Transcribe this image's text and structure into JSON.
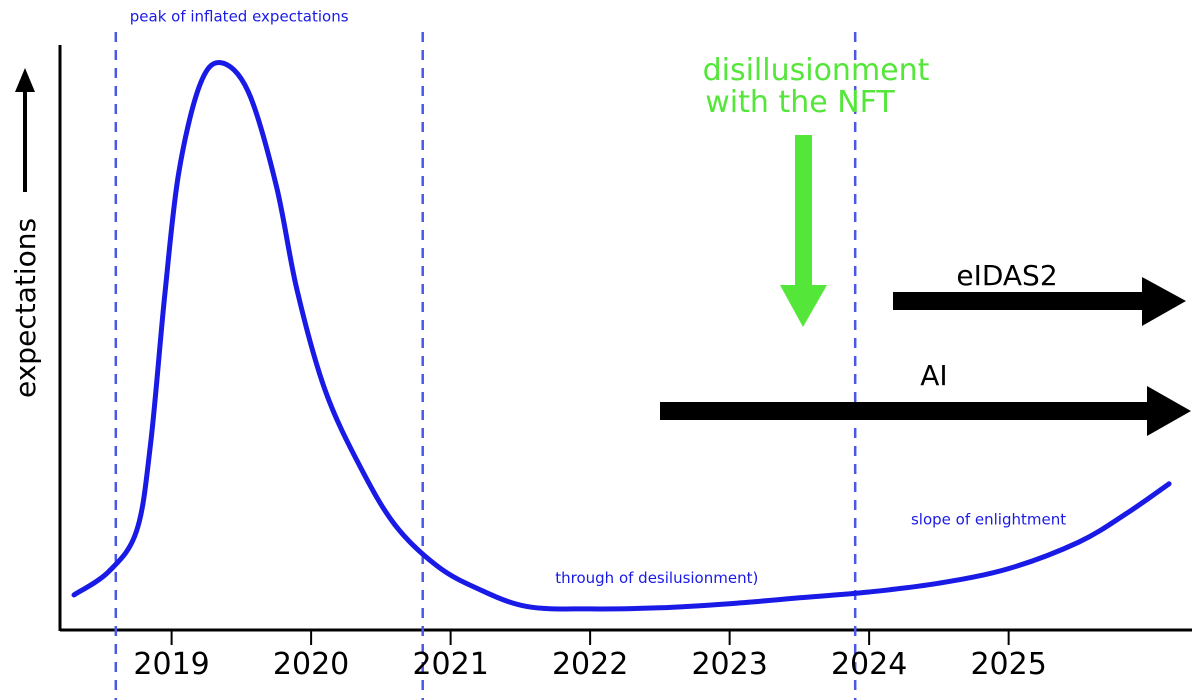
{
  "chart_data": {
    "type": "line",
    "xlabel": "",
    "ylabel": "expectations",
    "x_ticks": [
      "2019",
      "2020",
      "2021",
      "2022",
      "2023",
      "2024",
      "2025"
    ],
    "xlim": [
      2018.2,
      2026.3
    ],
    "ylim": [
      0,
      100
    ],
    "grid": false,
    "series": [
      {
        "color": "#1a1ae6",
        "points": [
          [
            2018.3,
            6
          ],
          [
            2018.55,
            10
          ],
          [
            2018.75,
            17
          ],
          [
            2018.85,
            32
          ],
          [
            2018.95,
            57
          ],
          [
            2019.05,
            78
          ],
          [
            2019.2,
            93
          ],
          [
            2019.35,
            97
          ],
          [
            2019.55,
            92
          ],
          [
            2019.75,
            76
          ],
          [
            2019.9,
            58
          ],
          [
            2020.1,
            41
          ],
          [
            2020.35,
            28
          ],
          [
            2020.6,
            18
          ],
          [
            2020.9,
            11
          ],
          [
            2021.2,
            7
          ],
          [
            2021.55,
            4
          ],
          [
            2022.0,
            3.6
          ],
          [
            2022.5,
            3.8
          ],
          [
            2023.0,
            4.5
          ],
          [
            2023.5,
            5.5
          ],
          [
            2024.0,
            6.5
          ],
          [
            2024.5,
            8
          ],
          [
            2025.0,
            10.5
          ],
          [
            2025.5,
            15
          ],
          [
            2025.85,
            20
          ],
          [
            2026.15,
            25
          ]
        ]
      }
    ],
    "vertical_lines": [
      {
        "x": 2018.6,
        "color": "#4a58e8"
      },
      {
        "x": 2020.8,
        "color": "#4a58e8"
      },
      {
        "x": 2023.9,
        "color": "#4a58e8"
      }
    ],
    "annotations": [
      {
        "text": "peak of inflated expectations",
        "x": 2018.7,
        "y": 104,
        "color": "#1a1ae6"
      },
      {
        "text": "through of desilusionment)",
        "x": 2021.75,
        "y": 8,
        "color": "#1a1ae6"
      },
      {
        "text": "slope of enlightment",
        "x": 2024.3,
        "y": 18,
        "color": "#1a1ae6"
      }
    ],
    "callouts": [
      {
        "lines": [
          "disillusionment",
          "with the NFT"
        ],
        "color": "#55e63a",
        "x": 2023.45
      }
    ],
    "trend_arrows": [
      {
        "label": "eIDAS2",
        "from_x": 2024.05,
        "color": "#000000"
      },
      {
        "label": "AI",
        "from_x": 2022.3,
        "color": "#000000"
      }
    ]
  }
}
